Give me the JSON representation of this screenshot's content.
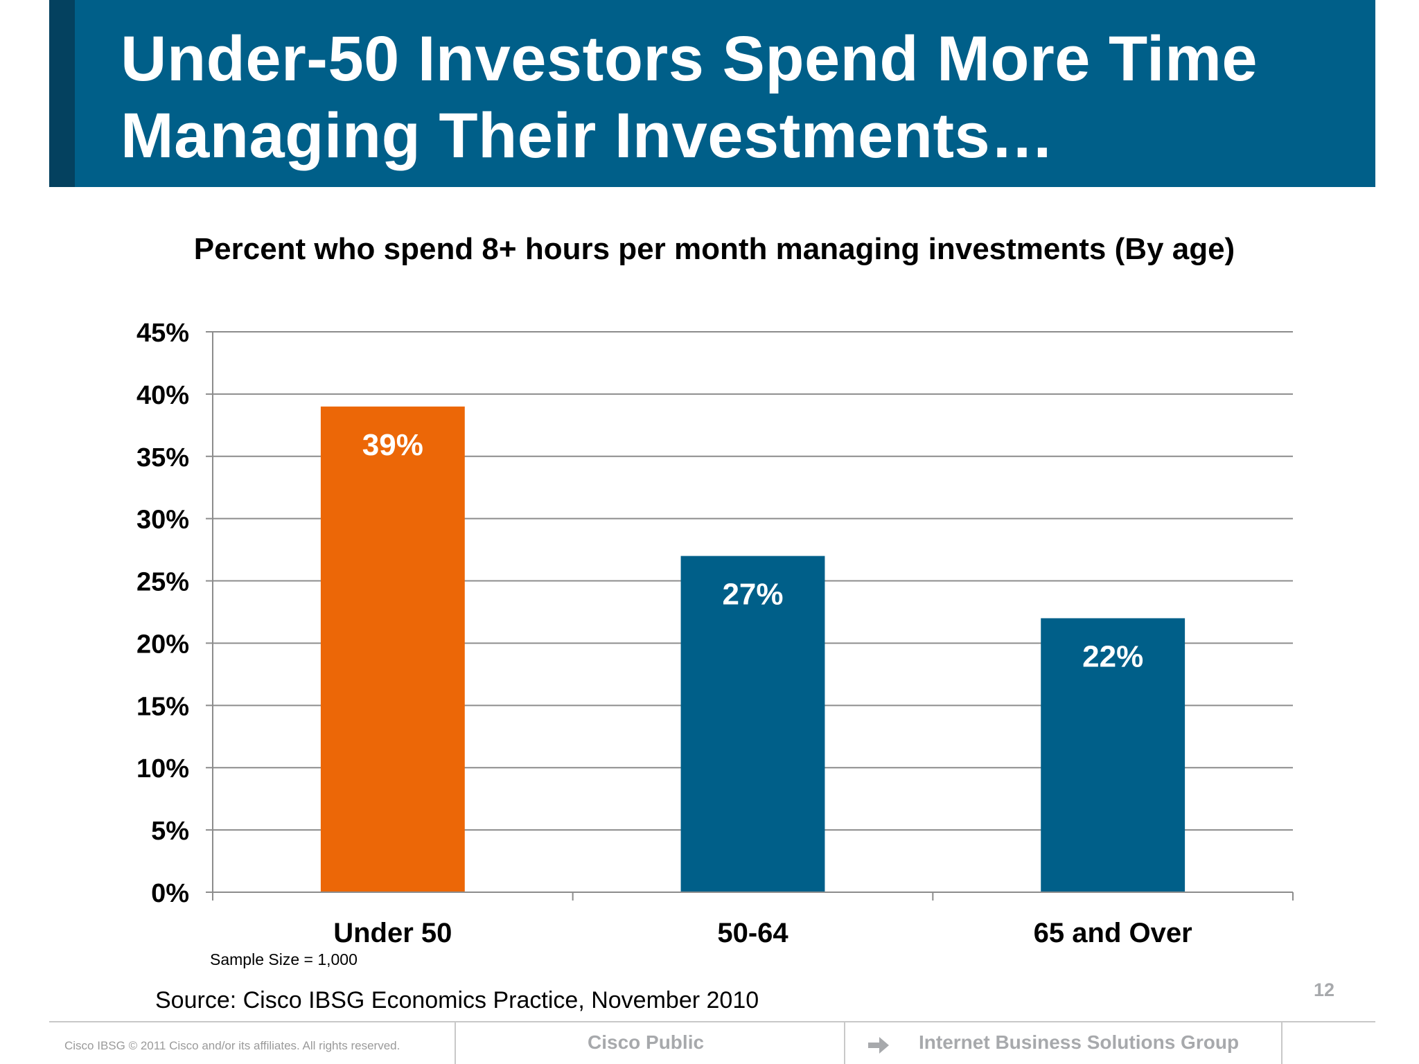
{
  "slide": {
    "title": "Under-50 Investors Spend More Time Managing Their Investments…",
    "sample_size": "Sample Size = 1,000",
    "source": "Source: Cisco IBSG Economics Practice, November 2010",
    "page_number": "12"
  },
  "footer": {
    "copyright": "Cisco IBSG © 2011 Cisco and/or its affiliates. All rights reserved.",
    "classification": "Cisco Public",
    "group": "Internet Business Solutions Group",
    "arrow_icon": "arrow-right-icon"
  },
  "colors": {
    "title_bar": "#005f89",
    "title_accent": "#04415f",
    "highlight_bar": "#ec6707",
    "bar": "#005f89"
  },
  "chart_data": {
    "type": "bar",
    "title": "Percent who spend 8+ hours per month managing investments (By age)",
    "categories": [
      "Under 50",
      "50-64",
      "65 and Over"
    ],
    "values": [
      39,
      27,
      22
    ],
    "data_labels": [
      "39%",
      "27%",
      "22%"
    ],
    "value_format": "percent",
    "xlabel": "",
    "ylabel": "",
    "ylim": [
      0,
      45
    ],
    "y_ticks": [
      0,
      5,
      10,
      15,
      20,
      25,
      30,
      35,
      40,
      45
    ],
    "y_tick_labels": [
      "0%",
      "5%",
      "10%",
      "15%",
      "20%",
      "25%",
      "30%",
      "35%",
      "40%",
      "45%"
    ],
    "highlight_index": 0,
    "grid": true,
    "legend": "none"
  }
}
